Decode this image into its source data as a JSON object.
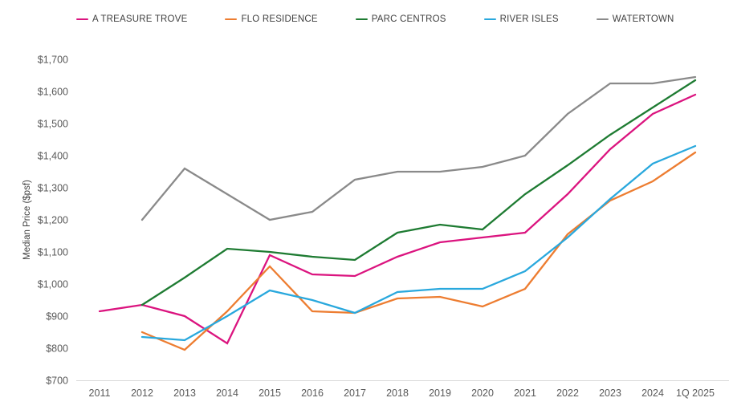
{
  "chart_data": {
    "type": "line",
    "title": "",
    "ylabel": "Median Price ($psf)",
    "xlabel": "",
    "ylim": [
      700,
      1700
    ],
    "ytick_step": 100,
    "ytick_labels": [
      "$700",
      "$800",
      "$900",
      "$1,000",
      "$1,100",
      "$1,200",
      "$1,300",
      "$1,400",
      "$1,500",
      "$1,600",
      "$1,700"
    ],
    "categories": [
      "2011",
      "2012",
      "2013",
      "2014",
      "2015",
      "2016",
      "2017",
      "2018",
      "2019",
      "2020",
      "2021",
      "2022",
      "2023",
      "2024",
      "1Q 2025"
    ],
    "grid": false,
    "legend_position": "top",
    "series": [
      {
        "name": "A TREASURE TROVE",
        "color": "#db147f",
        "values": [
          915,
          935,
          900,
          815,
          1090,
          1030,
          1025,
          1085,
          1130,
          1145,
          1160,
          1280,
          1420,
          1530,
          1590
        ]
      },
      {
        "name": "FLO RESIDENCE",
        "color": "#ed7d31",
        "values": [
          null,
          850,
          795,
          915,
          1055,
          915,
          910,
          955,
          960,
          930,
          985,
          1155,
          1260,
          1320,
          1410
        ]
      },
      {
        "name": "PARC CENTROS",
        "color": "#1e7b32",
        "values": [
          null,
          935,
          1020,
          1110,
          1100,
          1085,
          1075,
          1160,
          1185,
          1170,
          1280,
          1370,
          1465,
          1550,
          1635
        ]
      },
      {
        "name": "RIVER ISLES",
        "color": "#29a8dd",
        "values": [
          null,
          835,
          825,
          900,
          980,
          950,
          910,
          975,
          985,
          985,
          1040,
          1145,
          1265,
          1375,
          1430
        ]
      },
      {
        "name": "WATERTOWN",
        "color": "#8a8a8a",
        "values": [
          null,
          1200,
          1360,
          1280,
          1200,
          1225,
          1325,
          1350,
          1350,
          1365,
          1400,
          1530,
          1625,
          1625,
          1645
        ]
      }
    ]
  },
  "colors": {
    "background": "#ffffff",
    "axis_line": "#d9d9d9",
    "tick_text": "#595959",
    "legend_text": "#404040"
  }
}
